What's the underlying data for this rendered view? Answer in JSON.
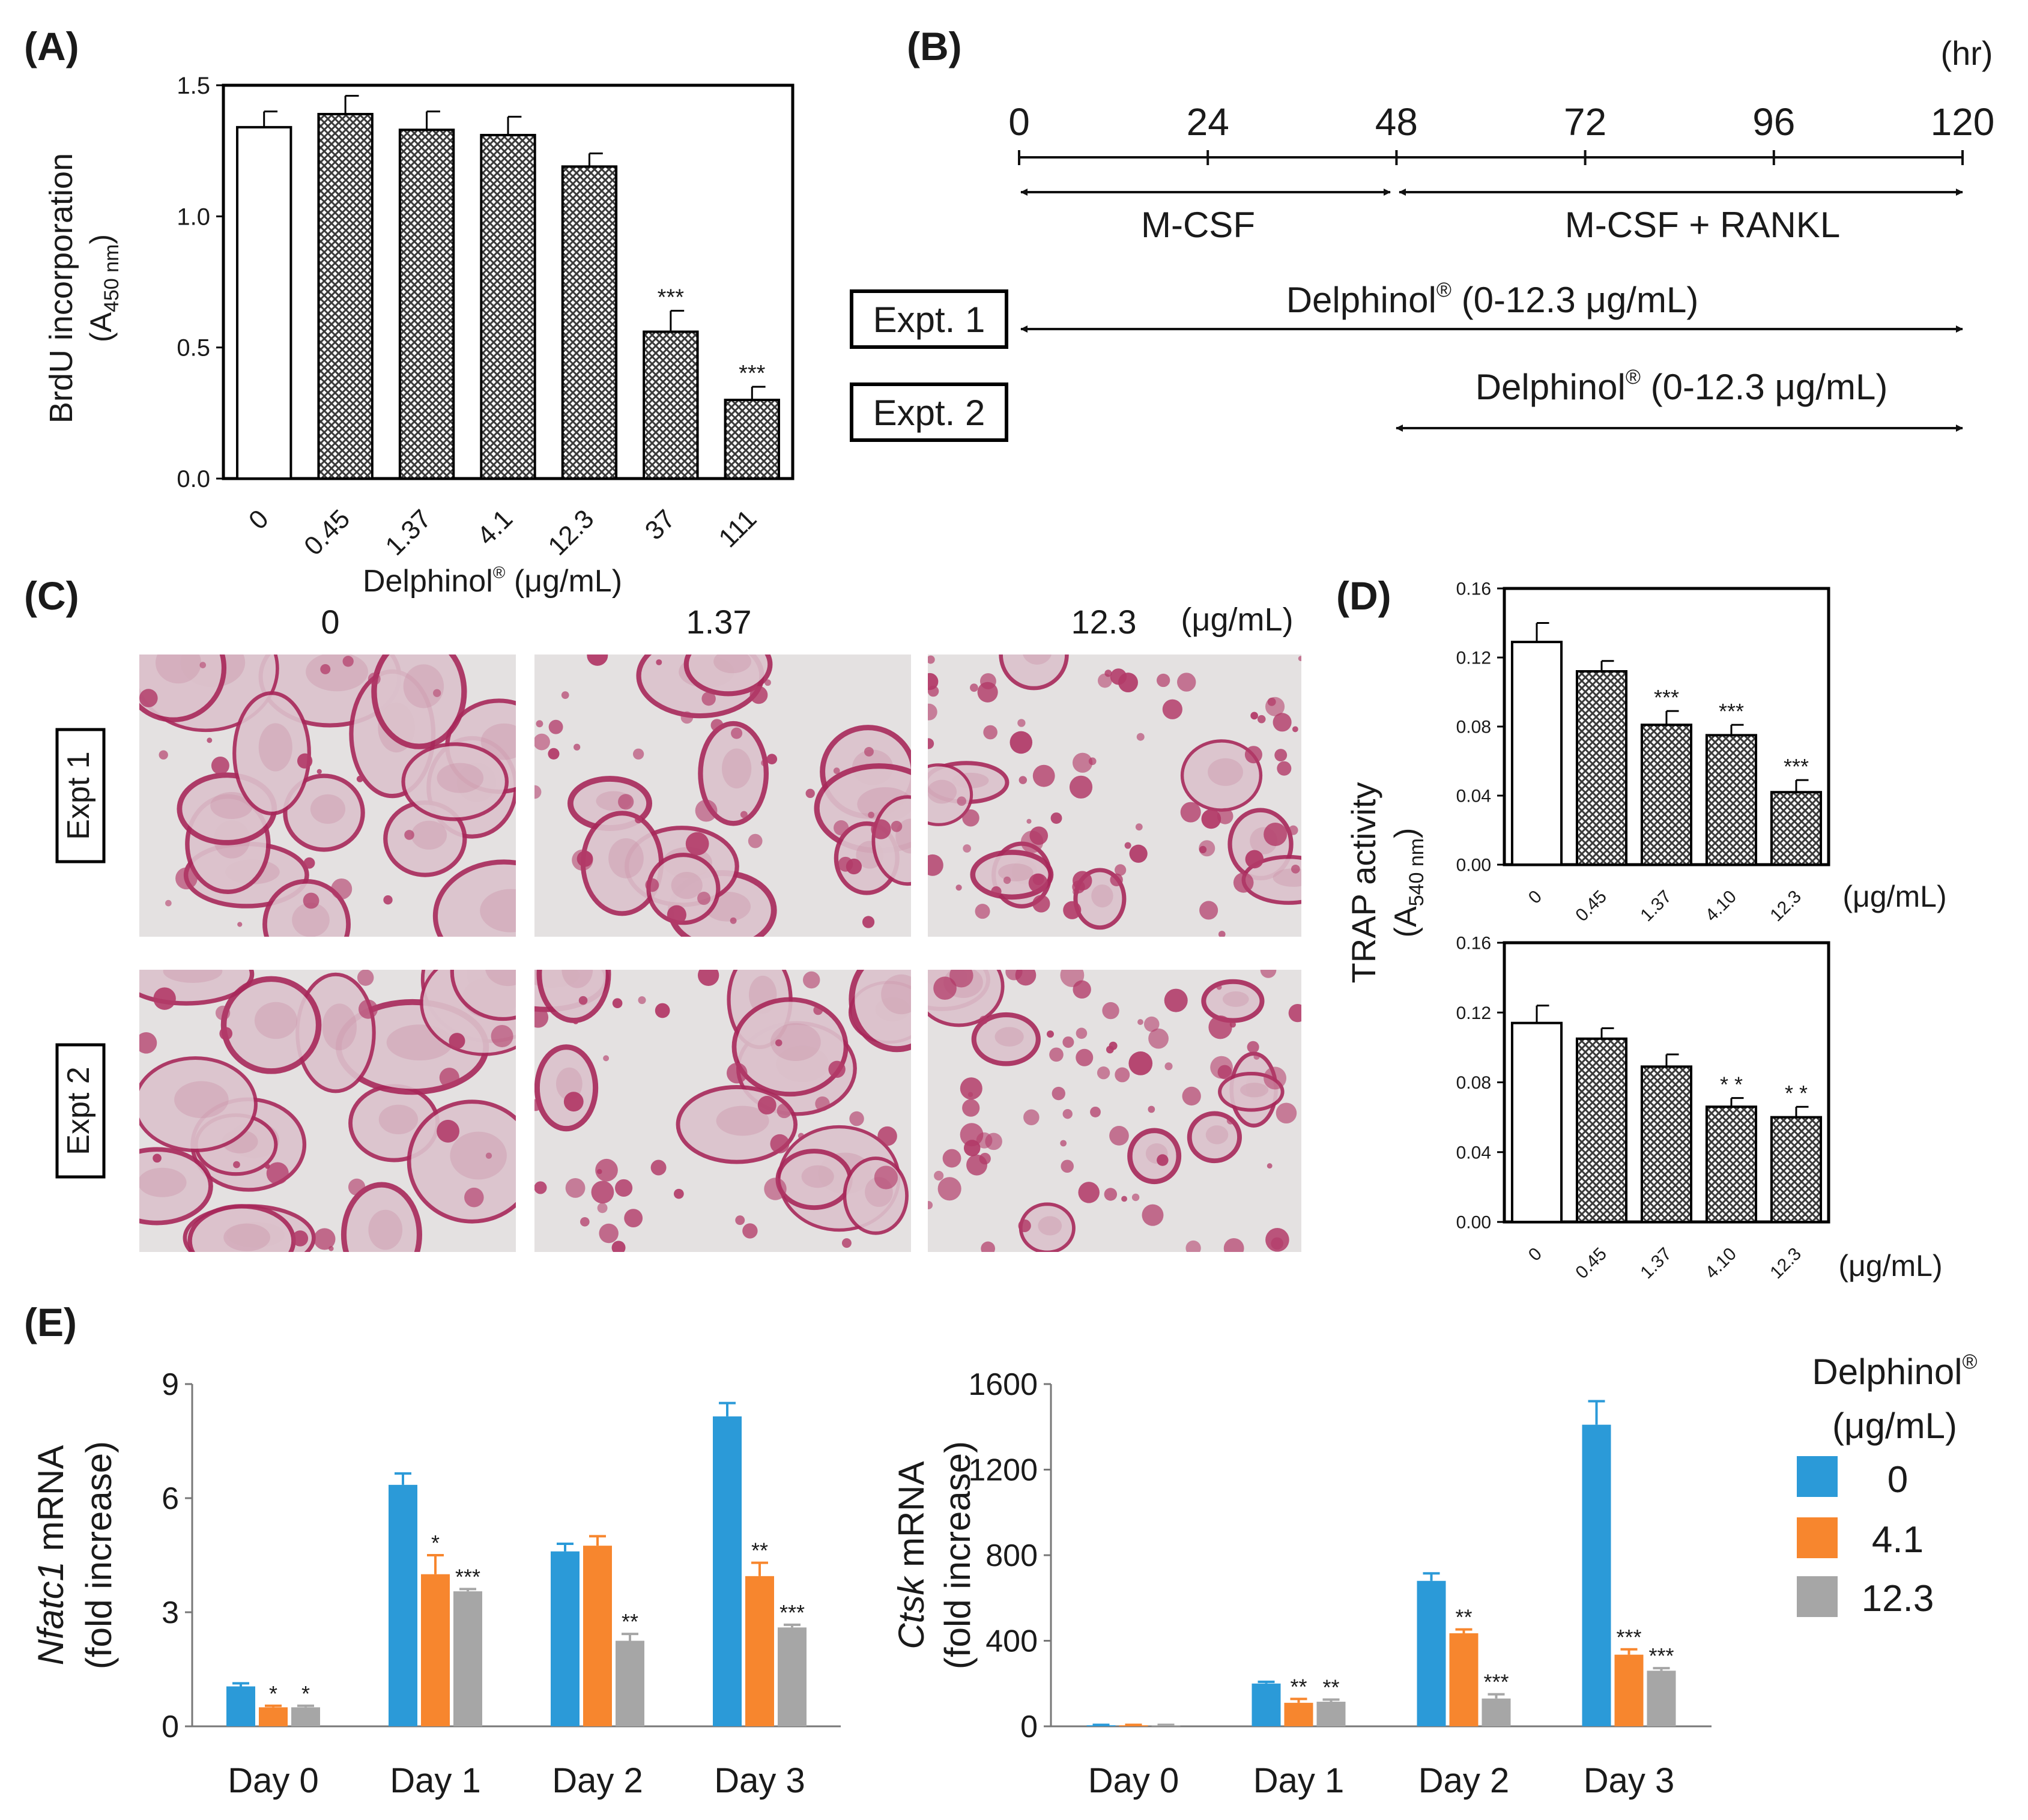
{
  "panels": {
    "A": "(A)",
    "B": "(B)",
    "C": "(C)",
    "D": "(D)",
    "E": "(E)"
  },
  "colors": {
    "open_bar": "#ffffff",
    "hatched_bar": "#8c8c8c",
    "series_0": "#2b9ad8",
    "series_41": "#f7862e",
    "series_123": "#a6a6a6",
    "stain": "#b0245e",
    "background_stain": "#e6dcdc"
  },
  "panelA": {
    "ylabel_main": "BrdU incorporation",
    "ylabel_unit_prefix": "(A",
    "ylabel_unit_sub": "450 nm",
    "ylabel_unit_suffix": ")",
    "xlabel_main": "Delphinol",
    "xlabel_reg": "®",
    "xlabel_unit": " (μg/mL)"
  },
  "panelB": {
    "unit": "(hr)",
    "ticks": [
      "0",
      "24",
      "48",
      "72",
      "96",
      "120"
    ],
    "phase1": "M-CSF",
    "phase2": "M-CSF + RANKL",
    "expt1": "Expt. 1",
    "expt2": "Expt. 2",
    "treatment1_main": "Delphinol",
    "treatment1_reg": "®",
    "treatment1_range": " (0-12.3 μg/mL)",
    "treatment2_main": "Delphinol",
    "treatment2_reg": "®",
    "treatment2_range": " (0-12.3 μg/mL)"
  },
  "panelC": {
    "col_labels": [
      "0",
      "1.37",
      "12.3"
    ],
    "unit": "(μg/mL)",
    "row_labels": [
      "Expt 1",
      "Expt 2"
    ]
  },
  "panelD": {
    "ylabel_main": "TRAP activity",
    "ylabel_unit_prefix": "(A",
    "ylabel_unit_sub": "540 nm",
    "ylabel_unit_suffix": ")",
    "x_unit": "(μg/mL)"
  },
  "panelE": {
    "legend_title_main": "Delphinol",
    "legend_title_reg": "®",
    "legend_title_unit": "(μg/mL)",
    "legend_entries": [
      "0",
      "4.1",
      "12.3"
    ]
  },
  "chart_data": [
    {
      "id": "A",
      "type": "bar",
      "categories": [
        "0",
        "0.45",
        "1.37",
        "4.1",
        "12.3",
        "37",
        "111"
      ],
      "values": [
        1.34,
        1.39,
        1.33,
        1.31,
        1.19,
        0.56,
        0.3
      ],
      "errors": [
        0.06,
        0.07,
        0.07,
        0.07,
        0.05,
        0.08,
        0.05
      ],
      "significance": [
        "",
        "",
        "",
        "",
        "",
        "***",
        "***"
      ],
      "ylim": [
        0,
        1.5
      ],
      "yticks": [
        "0.0",
        "0.5",
        "1.0",
        "1.5"
      ],
      "first_bar_open": true
    },
    {
      "id": "D1",
      "type": "bar",
      "categories": [
        "0",
        "0.45",
        "1.37",
        "4.10",
        "12.3"
      ],
      "values": [
        0.129,
        0.112,
        0.081,
        0.075,
        0.042
      ],
      "errors": [
        0.011,
        0.006,
        0.008,
        0.006,
        0.007
      ],
      "significance": [
        "",
        "",
        "***",
        "***",
        "***"
      ],
      "ylim": [
        0,
        0.16
      ],
      "yticks": [
        "0.00",
        "0.04",
        "0.08",
        "0.12",
        "0.16"
      ],
      "first_bar_open": true
    },
    {
      "id": "D2",
      "type": "bar",
      "categories": [
        "0",
        "0.45",
        "1.37",
        "4.10",
        "12.3"
      ],
      "values": [
        0.114,
        0.105,
        0.089,
        0.066,
        0.06
      ],
      "errors": [
        0.01,
        0.006,
        0.007,
        0.005,
        0.006
      ],
      "significance": [
        "",
        "",
        "",
        "* *",
        "* *"
      ],
      "ylim": [
        0,
        0.16
      ],
      "yticks": [
        "0.00",
        "0.04",
        "0.08",
        "0.12",
        "0.16"
      ],
      "first_bar_open": true
    },
    {
      "id": "E1",
      "type": "bar",
      "ylabel_italic": "Nfatc1",
      "ylabel_rest": " mRNA",
      "ylabel_line2": "(fold increase)",
      "categories": [
        "Day 0",
        "Day 1",
        "Day 2",
        "Day 3"
      ],
      "series": [
        {
          "name": "0",
          "values": [
            1.05,
            6.35,
            4.6,
            8.15
          ],
          "errors": [
            0.08,
            0.3,
            0.2,
            0.35
          ],
          "significance": [
            "",
            "",
            "",
            ""
          ]
        },
        {
          "name": "4.1",
          "values": [
            0.5,
            4.0,
            4.75,
            3.95
          ],
          "errors": [
            0.04,
            0.5,
            0.25,
            0.35
          ],
          "significance": [
            "*",
            "*",
            "",
            "**"
          ]
        },
        {
          "name": "12.3",
          "values": [
            0.5,
            3.55,
            2.25,
            2.6
          ],
          "errors": [
            0.04,
            0.06,
            0.18,
            0.07
          ],
          "significance": [
            "*",
            "***",
            "**",
            "***"
          ]
        }
      ],
      "ylim": [
        0,
        9
      ],
      "yticks": [
        "0",
        "3",
        "6",
        "9"
      ]
    },
    {
      "id": "E2",
      "type": "bar",
      "ylabel_italic": "Ctsk",
      "ylabel_rest": " mRNA",
      "ylabel_line2": "(fold increase)",
      "categories": [
        "Day 0",
        "Day 1",
        "Day 2",
        "Day 3"
      ],
      "series": [
        {
          "name": "0",
          "values": [
            5,
            200,
            680,
            1410
          ],
          "errors": [
            2,
            8,
            35,
            110
          ],
          "significance": [
            "",
            "",
            "",
            ""
          ]
        },
        {
          "name": "4.1",
          "values": [
            5,
            110,
            435,
            335
          ],
          "errors": [
            2,
            18,
            18,
            25
          ],
          "significance": [
            "",
            "**",
            "**",
            "***"
          ]
        },
        {
          "name": "12.3",
          "values": [
            5,
            115,
            130,
            260
          ],
          "errors": [
            2,
            10,
            20,
            12
          ],
          "significance": [
            "",
            "**",
            "***",
            "***"
          ]
        }
      ],
      "ylim": [
        0,
        1600
      ],
      "yticks": [
        "0",
        "400",
        "800",
        "1200",
        "1600"
      ]
    }
  ]
}
